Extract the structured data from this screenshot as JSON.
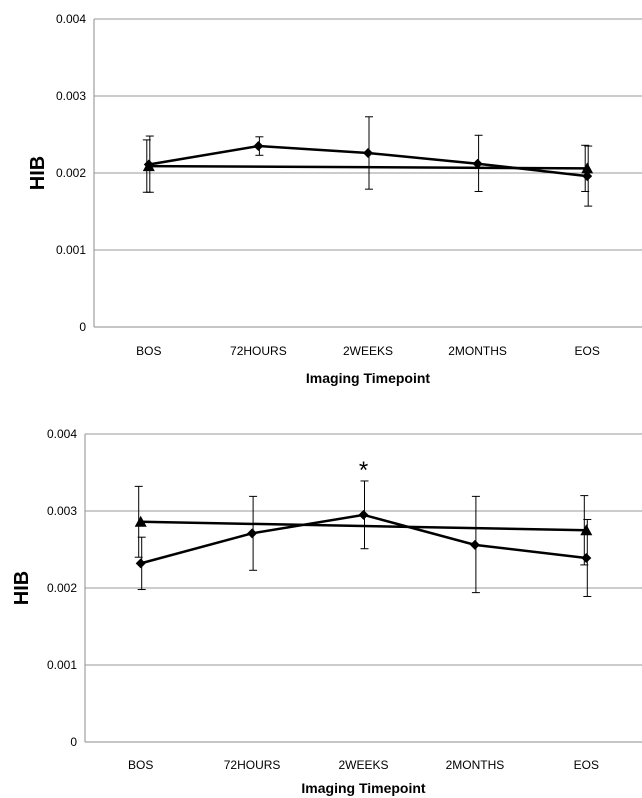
{
  "chart_data": [
    {
      "type": "line",
      "categories": [
        "BOS",
        "72HOURS",
        "2WEEKS",
        "2MONTHS",
        "EOS"
      ],
      "ylabel": "HIB",
      "xlabel": "Imaging Timepoint",
      "ylim": [
        0,
        0.004
      ],
      "yticks": [
        "0",
        "0.001",
        "0.002",
        "0.003",
        "0.004"
      ],
      "grid": true,
      "series": [
        {
          "marker": "triangle",
          "points": [
            {
              "x": "BOS",
              "y": 0.00209,
              "err_low": 0.00175,
              "err_high": 0.00243
            },
            {
              "x": "EOS",
              "y": 0.00206,
              "err_low": 0.00176,
              "err_high": 0.00236
            }
          ]
        },
        {
          "marker": "diamond",
          "points": [
            {
              "x": "BOS",
              "y": 0.00211,
              "err_low": 0.00175,
              "err_high": 0.00248
            },
            {
              "x": "72HOURS",
              "y": 0.00235,
              "err_low": 0.00223,
              "err_high": 0.00247
            },
            {
              "x": "2WEEKS",
              "y": 0.00226,
              "err_low": 0.00179,
              "err_high": 0.00273
            },
            {
              "x": "2MONTHS",
              "y": 0.00212,
              "err_low": 0.00176,
              "err_high": 0.00249
            },
            {
              "x": "EOS",
              "y": 0.00196,
              "err_low": 0.00157,
              "err_high": 0.00235
            }
          ]
        }
      ],
      "annotations": []
    },
    {
      "type": "line",
      "categories": [
        "BOS",
        "72HOURS",
        "2WEEKS",
        "2MONTHS",
        "EOS"
      ],
      "ylabel": "HIB",
      "xlabel": "Imaging Timepoint",
      "ylim": [
        0,
        0.004
      ],
      "yticks": [
        "0",
        "0.001",
        "0.002",
        "0.003",
        "0.004"
      ],
      "grid": true,
      "series": [
        {
          "marker": "triangle",
          "points": [
            {
              "x": "BOS",
              "y": 0.00286,
              "err_low": 0.0024,
              "err_high": 0.00332
            },
            {
              "x": "EOS",
              "y": 0.00275,
              "err_low": 0.0023,
              "err_high": 0.0032
            }
          ]
        },
        {
          "marker": "diamond",
          "points": [
            {
              "x": "BOS",
              "y": 0.00232,
              "err_low": 0.00198,
              "err_high": 0.00266
            },
            {
              "x": "72HOURS",
              "y": 0.00271,
              "err_low": 0.00223,
              "err_high": 0.00319
            },
            {
              "x": "2WEEKS",
              "y": 0.00295,
              "err_low": 0.00251,
              "err_high": 0.00339
            },
            {
              "x": "2MONTHS",
              "y": 0.00256,
              "err_low": 0.00194,
              "err_high": 0.00319
            },
            {
              "x": "EOS",
              "y": 0.00239,
              "err_low": 0.00189,
              "err_high": 0.00289
            }
          ]
        }
      ],
      "annotations": [
        {
          "text": "*",
          "x": "2WEEKS"
        }
      ]
    }
  ]
}
